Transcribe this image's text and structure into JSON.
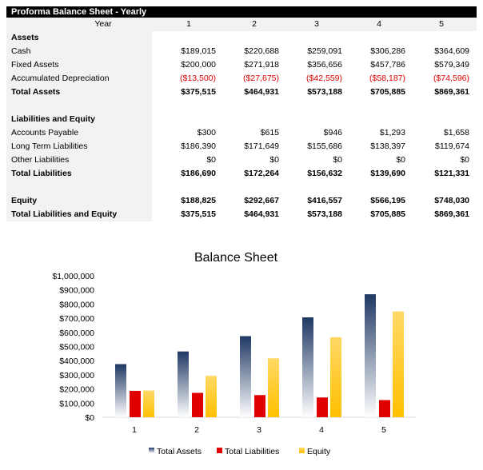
{
  "sheet": {
    "title": "Proforma Balance Sheet - Yearly",
    "header": {
      "label": "Year",
      "values": [
        "1",
        "2",
        "3",
        "4",
        "5"
      ]
    },
    "rows": [
      {
        "label": "Assets",
        "bold": true,
        "values": []
      },
      {
        "label": "Cash",
        "values": [
          "$189,015",
          "$220,688",
          "$259,091",
          "$306,286",
          "$364,609"
        ]
      },
      {
        "label": "Fixed Assets",
        "values": [
          "$200,000",
          "$271,918",
          "$356,656",
          "$457,786",
          "$579,349"
        ]
      },
      {
        "label": "Accumulated Depreciation",
        "negative": true,
        "values": [
          "($13,500)",
          "($27,675)",
          "($42,559)",
          "($58,187)",
          "($74,596)"
        ]
      },
      {
        "label": "Total Assets",
        "bold": true,
        "values": [
          "$375,515",
          "$464,931",
          "$573,188",
          "$705,885",
          "$869,361"
        ]
      },
      {
        "label": "",
        "values": []
      },
      {
        "label": "Liabilities and Equity",
        "bold": true,
        "values": []
      },
      {
        "label": "Accounts Payable",
        "values": [
          "$300",
          "$615",
          "$946",
          "$1,293",
          "$1,658"
        ]
      },
      {
        "label": "Long Term Liabilities",
        "values": [
          "$186,390",
          "$171,649",
          "$155,686",
          "$138,397",
          "$119,674"
        ]
      },
      {
        "label": "Other Liabilities",
        "values": [
          "$0",
          "$0",
          "$0",
          "$0",
          "$0"
        ]
      },
      {
        "label": "Total Liabilities",
        "bold": true,
        "values": [
          "$186,690",
          "$172,264",
          "$156,632",
          "$139,690",
          "$121,331"
        ]
      },
      {
        "label": "",
        "values": []
      },
      {
        "label": "Equity",
        "bold": true,
        "values": [
          "$188,825",
          "$292,667",
          "$416,557",
          "$566,195",
          "$748,030"
        ]
      },
      {
        "label": "Total Liabilities and Equity",
        "bold": true,
        "values": [
          "$375,515",
          "$464,931",
          "$573,188",
          "$705,885",
          "$869,361"
        ]
      }
    ],
    "negative_color": "#e00000"
  },
  "chart_data": {
    "type": "bar",
    "title": "Balance Sheet",
    "categories": [
      "1",
      "2",
      "3",
      "4",
      "5"
    ],
    "ylim": [
      0,
      1000000
    ],
    "yticks": [
      "$0",
      "$100,000",
      "$200,000",
      "$300,000",
      "$400,000",
      "$500,000",
      "$600,000",
      "$700,000",
      "$800,000",
      "$900,000",
      "$1,000,000"
    ],
    "grid": false,
    "legend": "bottom",
    "series": [
      {
        "name": "Total Assets",
        "values": [
          375515,
          464931,
          573188,
          705885,
          869361
        ],
        "color": "#1f3864",
        "fill": "gradient-to-white"
      },
      {
        "name": "Total Liabilities",
        "values": [
          186690,
          172264,
          156632,
          139690,
          121331
        ],
        "color": "#e00000"
      },
      {
        "name": "Equity",
        "values": [
          188825,
          292667,
          416557,
          566195,
          748030
        ],
        "color": "#ffc000",
        "fill": "gradient-light-to-gold"
      }
    ]
  }
}
